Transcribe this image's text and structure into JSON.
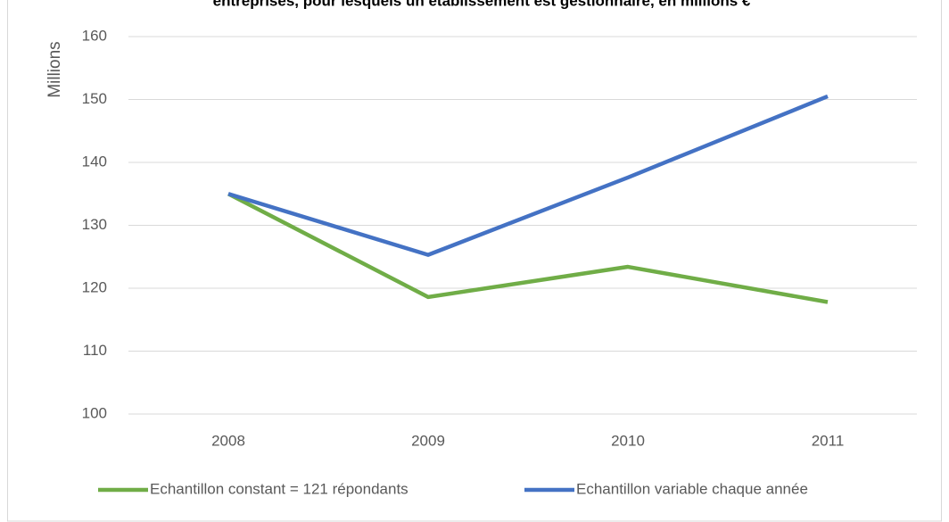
{
  "chart_data": {
    "type": "line",
    "title": "entreprises, pour lesquels un établissement est gestionnaire, en millions €",
    "ylabel": "Millions",
    "categories": [
      "2008",
      "2009",
      "2010",
      "2011"
    ],
    "series": [
      {
        "name": "Echantillon constant = 121 répondants",
        "color": "#70ad47",
        "values": [
          135,
          118.6,
          123.4,
          117.8
        ]
      },
      {
        "name": "Echantillon variable chaque année",
        "color": "#4472c4",
        "values": [
          135,
          125.3,
          137.6,
          150.5
        ]
      }
    ],
    "ylim": [
      100,
      160
    ],
    "yticks": [
      100,
      110,
      120,
      130,
      140,
      150,
      160
    ],
    "grid": true,
    "legend": "bottom"
  }
}
